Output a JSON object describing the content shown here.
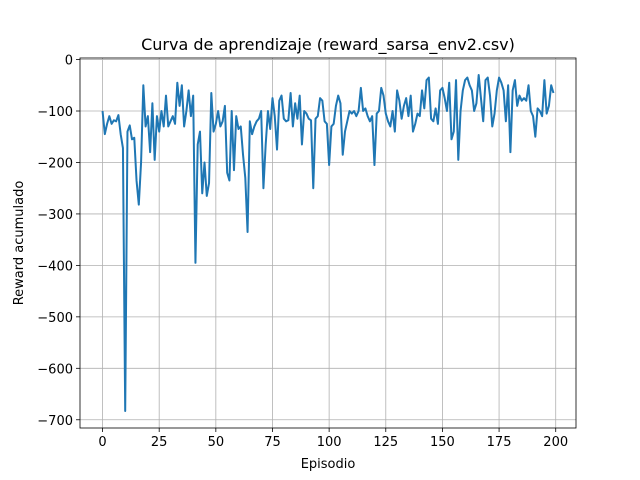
{
  "chart_data": {
    "type": "line",
    "title": "Curva de aprendizaje (reward_sarsa_env2.csv)",
    "xlabel": "Episodio",
    "ylabel": "Reward acumulado",
    "grid": true,
    "xlim": [
      -9.95,
      208.95
    ],
    "ylim": [
      -716,
      3
    ],
    "xticks": [
      0,
      25,
      50,
      75,
      100,
      125,
      150,
      175,
      200
    ],
    "yticks": [
      0,
      {
        "value": -100,
        "label": "−100"
      },
      {
        "value": -200,
        "label": "−200"
      },
      {
        "value": -300,
        "label": "−300"
      },
      {
        "value": -400,
        "label": "−400"
      },
      {
        "value": -500,
        "label": "−500"
      },
      {
        "value": -600,
        "label": "−600"
      },
      {
        "value": -700,
        "label": "−700"
      }
    ],
    "x": [
      0,
      1,
      2,
      3,
      4,
      5,
      6,
      7,
      8,
      9,
      10,
      11,
      12,
      13,
      14,
      15,
      16,
      17,
      18,
      19,
      20,
      21,
      22,
      23,
      24,
      25,
      26,
      27,
      28,
      29,
      30,
      31,
      32,
      33,
      34,
      35,
      36,
      37,
      38,
      39,
      40,
      41,
      42,
      43,
      44,
      45,
      46,
      47,
      48,
      49,
      50,
      51,
      52,
      53,
      54,
      55,
      56,
      57,
      58,
      59,
      60,
      61,
      62,
      63,
      64,
      65,
      66,
      67,
      68,
      69,
      70,
      71,
      72,
      73,
      74,
      75,
      76,
      77,
      78,
      79,
      80,
      81,
      82,
      83,
      84,
      85,
      86,
      87,
      88,
      89,
      90,
      91,
      92,
      93,
      94,
      95,
      96,
      97,
      98,
      99,
      100,
      101,
      102,
      103,
      104,
      105,
      106,
      107,
      108,
      109,
      110,
      111,
      112,
      113,
      114,
      115,
      116,
      117,
      118,
      119,
      120,
      121,
      122,
      123,
      124,
      125,
      126,
      127,
      128,
      129,
      130,
      131,
      132,
      133,
      134,
      135,
      136,
      137,
      138,
      139,
      140,
      141,
      142,
      143,
      144,
      145,
      146,
      147,
      148,
      149,
      150,
      151,
      152,
      153,
      154,
      155,
      156,
      157,
      158,
      159,
      160,
      161,
      162,
      163,
      164,
      165,
      166,
      167,
      168,
      169,
      170,
      171,
      172,
      173,
      174,
      175,
      176,
      177,
      178,
      179,
      180,
      181,
      182,
      183,
      184,
      185,
      186,
      187,
      188,
      189,
      190,
      191,
      192,
      193,
      194,
      195,
      196,
      197,
      198,
      199
    ],
    "series": [
      {
        "color": "#1f77b4",
        "values": [
          -100,
          -145,
          -125,
          -110,
          -125,
          -118,
          -120,
          -108,
          -145,
          -172,
          -683,
          -140,
          -128,
          -155,
          -152,
          -235,
          -282,
          -200,
          -50,
          -130,
          -110,
          -180,
          -85,
          -195,
          -110,
          -140,
          -100,
          -130,
          -70,
          -130,
          -120,
          -110,
          -125,
          -45,
          -90,
          -50,
          -130,
          -100,
          -60,
          -110,
          -70,
          -395,
          -165,
          -140,
          -260,
          -200,
          -265,
          -240,
          -65,
          -140,
          -125,
          -100,
          -130,
          -120,
          -90,
          -220,
          -235,
          -100,
          -215,
          -110,
          -135,
          -130,
          -185,
          -230,
          -335,
          -120,
          -145,
          -130,
          -120,
          -115,
          -100,
          -250,
          -165,
          -100,
          -135,
          -75,
          -110,
          -175,
          -80,
          -70,
          -115,
          -120,
          -118,
          -65,
          -130,
          -85,
          -115,
          -70,
          -165,
          -100,
          -105,
          -115,
          -118,
          -250,
          -115,
          -110,
          -75,
          -80,
          -120,
          -125,
          -205,
          -130,
          -125,
          -90,
          -70,
          -85,
          -185,
          -140,
          -120,
          -100,
          -105,
          -100,
          -110,
          -100,
          -55,
          -100,
          -95,
          -110,
          -120,
          -110,
          -205,
          -105,
          -100,
          -55,
          -70,
          -105,
          -120,
          -130,
          -100,
          -140,
          -60,
          -80,
          -115,
          -90,
          -75,
          -110,
          -70,
          -140,
          -125,
          -105,
          -110,
          -60,
          -95,
          -40,
          -35,
          -115,
          -120,
          -95,
          -125,
          -60,
          -55,
          -75,
          -100,
          -45,
          -155,
          -140,
          -40,
          -195,
          -100,
          -60,
          -40,
          -35,
          -50,
          -60,
          -100,
          -85,
          -30,
          -75,
          -120,
          -40,
          -35,
          -70,
          -130,
          -105,
          -60,
          -35,
          -45,
          -60,
          -120,
          -50,
          -180,
          -60,
          -40,
          -90,
          -70,
          -80,
          -75,
          -80,
          -50,
          -100,
          -110,
          -150,
          -95,
          -100,
          -110,
          -40,
          -105,
          -90,
          -50,
          -65
        ]
      }
    ]
  }
}
